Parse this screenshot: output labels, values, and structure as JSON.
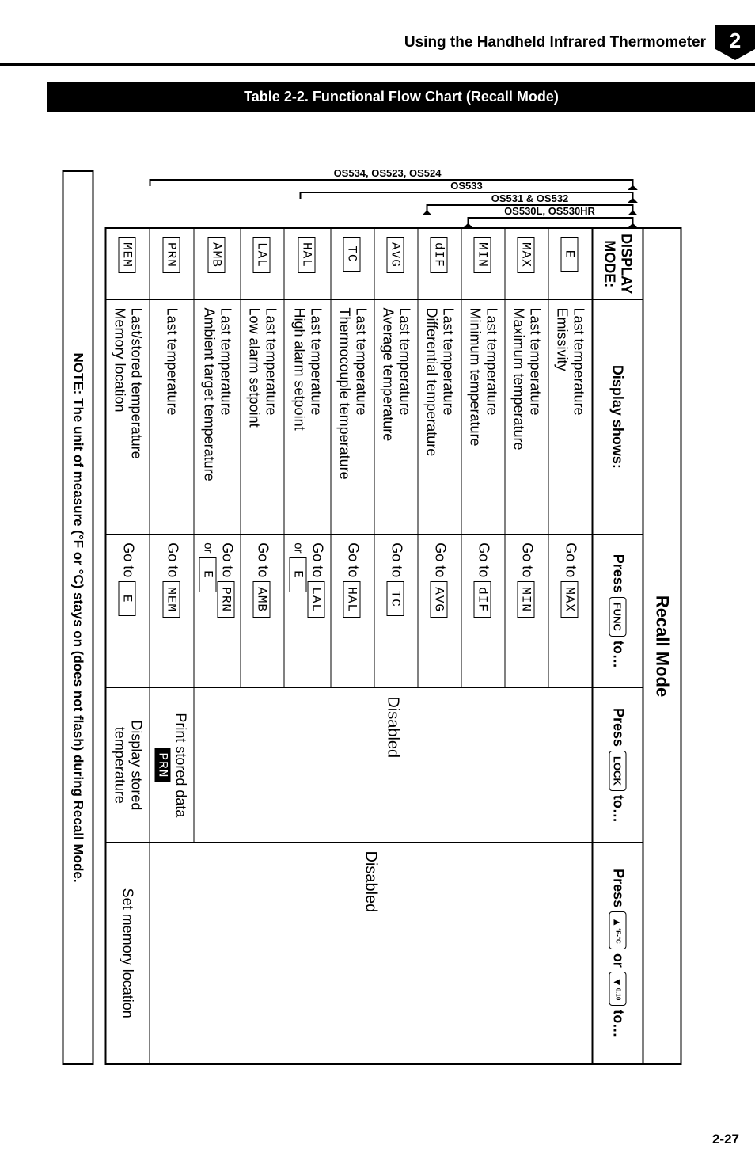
{
  "header": {
    "title": "Using the Handheld Infrared Thermometer",
    "chapter_badge": "2",
    "badge_bg": "#000000",
    "badge_fg": "#ffffff"
  },
  "caption": "Table 2-2.  Functional Flow Chart (Recall Mode)",
  "table_title": "Recall Mode",
  "columns": {
    "display_mode": "DISPLAY\nMODE:",
    "display_shows": "Display shows:",
    "press_func": {
      "prefix": "Press ",
      "key": "FUNC",
      "suffix": " to…"
    },
    "press_lock": {
      "prefix": "Press ",
      "key": "LOCK",
      "suffix": " to…"
    },
    "press_arrows": {
      "prefix": "Press ",
      "suffix": " to…",
      "or": " or ",
      "sub": "°F-°C",
      "sub2": "0.10"
    }
  },
  "disabled_label": "Disabled",
  "rows": [
    {
      "mode": "E",
      "shows": "Last temperature\nEmissivity",
      "goto": "MAX"
    },
    {
      "mode": "MAX",
      "shows": "Last temperature\nMaximum temperature",
      "goto": "MIN"
    },
    {
      "mode": "MIN",
      "shows": "Last temperature\nMinimum temperature",
      "goto": "dIF"
    },
    {
      "mode": "dIF",
      "shows": "Last temperature\nDifferential temperature",
      "goto": "AVG"
    },
    {
      "mode": "AVG",
      "shows": "Last temperature\nAverage temperature",
      "goto": "TC"
    },
    {
      "mode": "TC",
      "shows": "Last temperature\nThermocouple temperature",
      "goto": "HAL"
    },
    {
      "mode": "HAL",
      "shows": "Last temperature\nHigh alarm setpoint",
      "goto": "LAL",
      "goto_or": "E"
    },
    {
      "mode": "LAL",
      "shows": "Last temperature\nLow alarm setpoint",
      "goto": "AMB"
    },
    {
      "mode": "AMB",
      "shows": "Last temperature\nAmbient target temperature",
      "goto": "PRN",
      "goto_or": "E"
    },
    {
      "mode": "PRN",
      "shows": "Last temperature",
      "goto": "MEM",
      "lock": "Print stored data",
      "lock_mode": "PRN"
    },
    {
      "mode": "MEM",
      "shows": "Last/stored temperature\nMemory location",
      "goto": "E",
      "lock": "Display stored\ntemperature",
      "arrows": "Set memory location"
    }
  ],
  "goto_prefix": "Go to ",
  "or_label": "or",
  "bracket_labels": {
    "a": "OS531 & OS532",
    "b": "OS530L, OS530HR",
    "c": "OS533",
    "d": "OS534, OS523, OS524"
  },
  "note": "NOTE:  The unit of measure (°F or °C) stays on (does not flash) during Recall Mode.",
  "page_number": "2-27",
  "colors": {
    "fg": "#000000",
    "bg": "#ffffff"
  }
}
